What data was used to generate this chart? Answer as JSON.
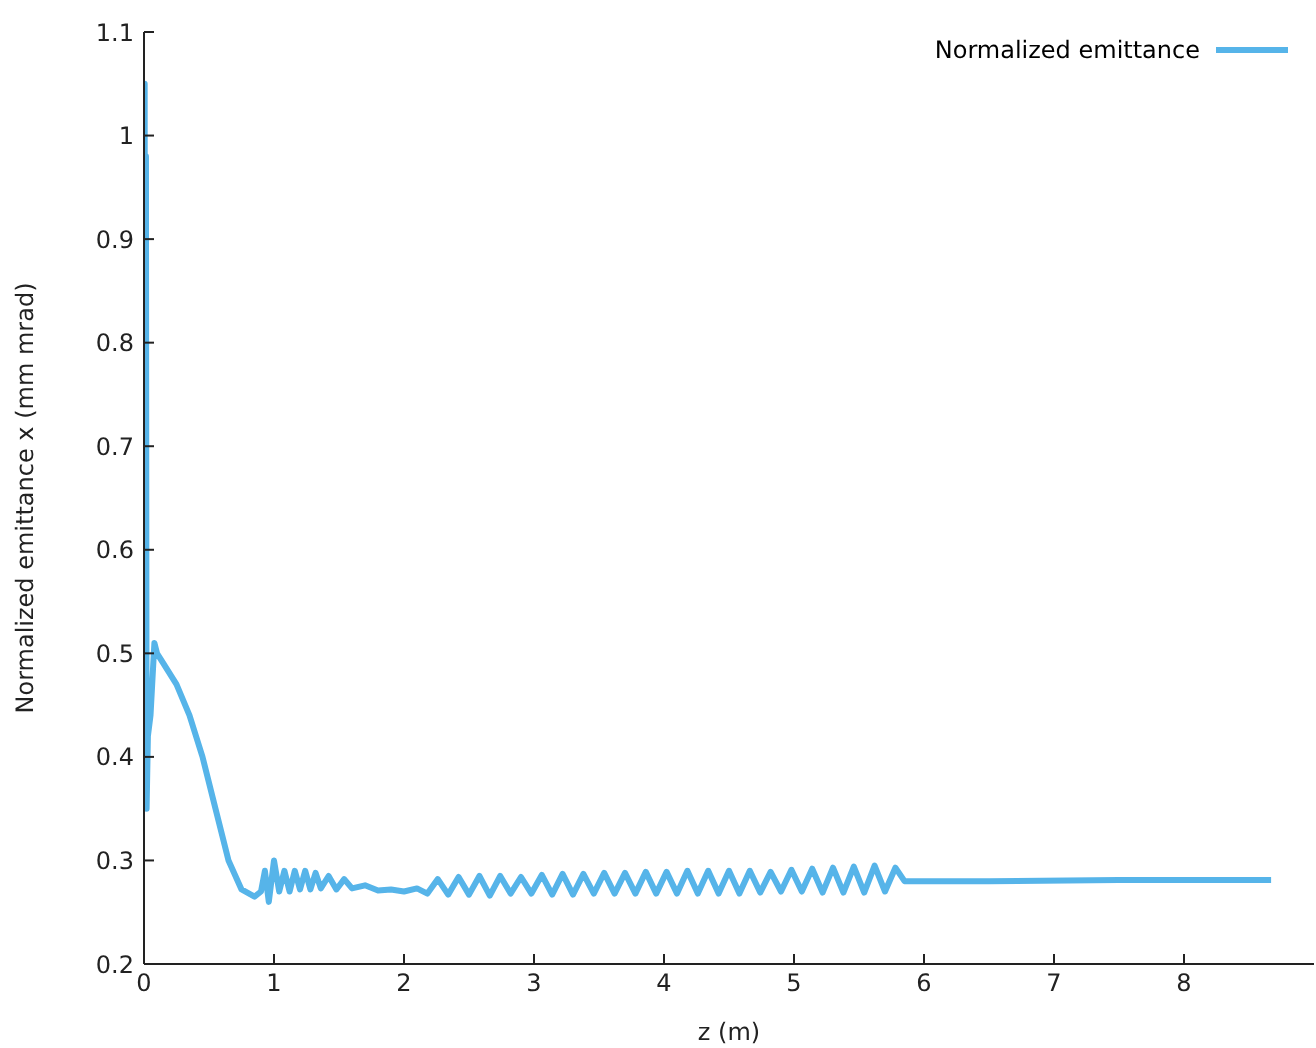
{
  "chart_data": {
    "type": "line",
    "xlabel": "z (m)",
    "ylabel": "Normalized emittance x (mm mrad)",
    "xlim": [
      0,
      9
    ],
    "xticks": [
      0,
      1,
      2,
      3,
      4,
      5,
      6,
      7,
      8
    ],
    "ylim": [
      0.2,
      1.1
    ],
    "yticks": [
      0.2,
      0.3,
      0.4,
      0.5,
      0.6,
      0.7,
      0.8,
      0.9,
      1,
      1.1
    ],
    "grid": false,
    "legend": "top right",
    "marker": "none",
    "line_style": "solid",
    "series": [
      {
        "name": "Normalized emittance",
        "color": "#56b4e9",
        "x": [
          0,
          0.005,
          0.01,
          0.015,
          0.02,
          0.03,
          0.05,
          0.08,
          0.1,
          0.15,
          0.25,
          0.35,
          0.45,
          0.55,
          0.65,
          0.75,
          0.85,
          0.9,
          0.93,
          0.96,
          1.0,
          1.04,
          1.08,
          1.12,
          1.16,
          1.2,
          1.24,
          1.28,
          1.32,
          1.36,
          1.42,
          1.48,
          1.54,
          1.6,
          1.7,
          1.8,
          1.9,
          2.0,
          2.1,
          2.18,
          2.26,
          2.34,
          2.42,
          2.5,
          2.58,
          2.66,
          2.74,
          2.82,
          2.9,
          2.98,
          3.06,
          3.14,
          3.22,
          3.3,
          3.38,
          3.46,
          3.54,
          3.62,
          3.7,
          3.78,
          3.86,
          3.94,
          4.02,
          4.1,
          4.18,
          4.26,
          4.34,
          4.42,
          4.5,
          4.58,
          4.66,
          4.74,
          4.82,
          4.9,
          4.98,
          5.06,
          5.14,
          5.22,
          5.3,
          5.38,
          5.46,
          5.54,
          5.62,
          5.7,
          5.78,
          5.85,
          6.5,
          7.5,
          8.67
        ],
        "values": [
          0.35,
          1.05,
          0.36,
          0.98,
          0.35,
          0.42,
          0.44,
          0.51,
          0.5,
          0.49,
          0.47,
          0.44,
          0.4,
          0.35,
          0.3,
          0.272,
          0.265,
          0.27,
          0.29,
          0.26,
          0.3,
          0.27,
          0.29,
          0.27,
          0.29,
          0.272,
          0.29,
          0.272,
          0.288,
          0.273,
          0.285,
          0.272,
          0.282,
          0.273,
          0.276,
          0.271,
          0.272,
          0.27,
          0.273,
          0.268,
          0.282,
          0.267,
          0.284,
          0.267,
          0.285,
          0.266,
          0.285,
          0.268,
          0.284,
          0.268,
          0.286,
          0.267,
          0.287,
          0.267,
          0.287,
          0.268,
          0.288,
          0.268,
          0.288,
          0.268,
          0.289,
          0.268,
          0.289,
          0.268,
          0.29,
          0.268,
          0.29,
          0.268,
          0.29,
          0.268,
          0.29,
          0.269,
          0.289,
          0.27,
          0.291,
          0.27,
          0.292,
          0.269,
          0.293,
          0.269,
          0.294,
          0.269,
          0.295,
          0.27,
          0.293,
          0.28,
          0.28,
          0.281,
          0.281
        ]
      }
    ]
  }
}
